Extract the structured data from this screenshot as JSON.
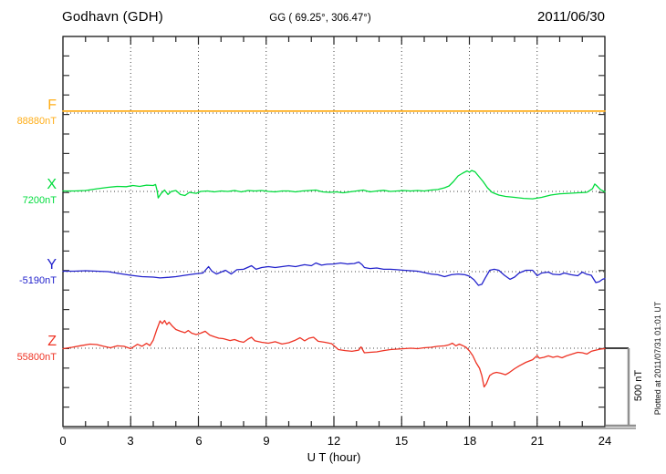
{
  "header": {
    "station": "Godhavn (GDH)",
    "coordinates": "GG ( 69.25°, 306.47°)",
    "date": "2011/06/30"
  },
  "components": [
    {
      "label": "F",
      "baseline_label": "88880nT",
      "color": "#FFAE19"
    },
    {
      "label": "X",
      "baseline_label": "7200nT",
      "color": "#00DC3C"
    },
    {
      "label": "Y",
      "baseline_label": "-5190nT",
      "color": "#2222CC"
    },
    {
      "label": "Z",
      "baseline_label": "55800nT",
      "color": "#EE3324"
    }
  ],
  "x_axis": {
    "label": "U T (hour)",
    "tick_labels": [
      "0",
      "3",
      "6",
      "9",
      "12",
      "15",
      "18",
      "21",
      "24"
    ],
    "range": [
      0,
      24
    ]
  },
  "scale_bar": {
    "label": "500 nT",
    "value_nT": 500
  },
  "footer_note": "Plotted at 2011/07/31 01:01 UT",
  "chart_data": {
    "type": "line",
    "title": "Godhavn (GDH) magnetogram, geographic coords 69.25°, 306.47°, 2011/06/30",
    "xlabel": "U T (hour)",
    "x_range": [
      0,
      24
    ],
    "grid": "dotted vertical every 3 h, dotted horizontal at each component baseline",
    "scale_note": "points are [UT hour, offset in nT from component baseline]; scale bar = 500 nT",
    "series": [
      {
        "name": "F",
        "baseline_nT": 88880,
        "color": "#FFAE19",
        "points": [
          [
            0,
            12
          ],
          [
            24,
            12
          ]
        ]
      },
      {
        "name": "X",
        "baseline_nT": 7200,
        "color": "#00DC3C",
        "points": [
          [
            0,
            3
          ],
          [
            0.5,
            3
          ],
          [
            1,
            6
          ],
          [
            1.5,
            17
          ],
          [
            2,
            26
          ],
          [
            2.4,
            32
          ],
          [
            2.8,
            30
          ],
          [
            3.1,
            38
          ],
          [
            3.4,
            32
          ],
          [
            3.7,
            40
          ],
          [
            4,
            38
          ],
          [
            4.1,
            44
          ],
          [
            4.17,
            5
          ],
          [
            4.22,
            -41
          ],
          [
            4.35,
            -12
          ],
          [
            4.5,
            9
          ],
          [
            4.65,
            -20
          ],
          [
            4.8,
            0
          ],
          [
            5,
            6
          ],
          [
            5.2,
            -20
          ],
          [
            5.4,
            -26
          ],
          [
            5.6,
            -6
          ],
          [
            5.9,
            -12
          ],
          [
            6.1,
            0
          ],
          [
            6.4,
            3
          ],
          [
            6.7,
            -3
          ],
          [
            7,
            3
          ],
          [
            7.3,
            0
          ],
          [
            7.6,
            6
          ],
          [
            7.9,
            -3
          ],
          [
            8.2,
            6
          ],
          [
            8.5,
            3
          ],
          [
            8.8,
            6
          ],
          [
            9.1,
            0
          ],
          [
            9.4,
            -3
          ],
          [
            9.7,
            3
          ],
          [
            10,
            3
          ],
          [
            10.3,
            -3
          ],
          [
            10.6,
            3
          ],
          [
            10.9,
            6
          ],
          [
            11.2,
            9
          ],
          [
            11.5,
            -3
          ],
          [
            11.8,
            -6
          ],
          [
            12.1,
            -3
          ],
          [
            12.4,
            -9
          ],
          [
            12.7,
            -3
          ],
          [
            13,
            3
          ],
          [
            13.3,
            9
          ],
          [
            13.6,
            -3
          ],
          [
            13.9,
            3
          ],
          [
            14.2,
            7
          ],
          [
            14.5,
            0
          ],
          [
            14.8,
            3
          ],
          [
            15.1,
            6
          ],
          [
            15.4,
            3
          ],
          [
            15.7,
            6
          ],
          [
            16,
            3
          ],
          [
            16.3,
            9
          ],
          [
            16.6,
            12
          ],
          [
            16.9,
            23
          ],
          [
            17.1,
            35
          ],
          [
            17.3,
            64
          ],
          [
            17.5,
            99
          ],
          [
            17.7,
            116
          ],
          [
            17.9,
            131
          ],
          [
            18,
            122
          ],
          [
            18.1,
            134
          ],
          [
            18.25,
            125
          ],
          [
            18.4,
            99
          ],
          [
            18.6,
            64
          ],
          [
            18.8,
            23
          ],
          [
            19,
            -6
          ],
          [
            19.3,
            -23
          ],
          [
            19.6,
            -32
          ],
          [
            20,
            -38
          ],
          [
            20.4,
            -44
          ],
          [
            20.8,
            -47
          ],
          [
            21.2,
            -38
          ],
          [
            21.6,
            -23
          ],
          [
            22,
            -15
          ],
          [
            22.4,
            -12
          ],
          [
            22.8,
            -9
          ],
          [
            23.2,
            -6
          ],
          [
            23.45,
            17
          ],
          [
            23.55,
            47
          ],
          [
            23.65,
            35
          ],
          [
            23.8,
            12
          ],
          [
            24,
            -3
          ]
        ]
      },
      {
        "name": "Y",
        "baseline_nT": -5190,
        "color": "#2222CC",
        "points": [
          [
            0,
            3
          ],
          [
            0.5,
            3
          ],
          [
            1,
            6
          ],
          [
            1.5,
            3
          ],
          [
            2,
            0
          ],
          [
            2.5,
            -12
          ],
          [
            3,
            -23
          ],
          [
            3.5,
            -32
          ],
          [
            4,
            -35
          ],
          [
            4.3,
            -40
          ],
          [
            4.7,
            -36
          ],
          [
            5,
            -32
          ],
          [
            5.4,
            -23
          ],
          [
            5.8,
            -15
          ],
          [
            6.2,
            -9
          ],
          [
            6.45,
            32
          ],
          [
            6.6,
            3
          ],
          [
            6.8,
            -15
          ],
          [
            7,
            -3
          ],
          [
            7.2,
            9
          ],
          [
            7.45,
            -15
          ],
          [
            7.7,
            12
          ],
          [
            8,
            15
          ],
          [
            8.35,
            38
          ],
          [
            8.55,
            15
          ],
          [
            8.8,
            26
          ],
          [
            9.1,
            32
          ],
          [
            9.4,
            26
          ],
          [
            9.7,
            32
          ],
          [
            10,
            38
          ],
          [
            10.3,
            32
          ],
          [
            10.7,
            44
          ],
          [
            11,
            38
          ],
          [
            11.2,
            55
          ],
          [
            11.45,
            41
          ],
          [
            11.7,
            47
          ],
          [
            12,
            49
          ],
          [
            12.3,
            55
          ],
          [
            12.6,
            49
          ],
          [
            12.9,
            52
          ],
          [
            13.1,
            61
          ],
          [
            13.25,
            44
          ],
          [
            13.35,
            26
          ],
          [
            13.6,
            20
          ],
          [
            13.9,
            23
          ],
          [
            14.2,
            15
          ],
          [
            14.5,
            15
          ],
          [
            14.8,
            12
          ],
          [
            15.1,
            9
          ],
          [
            15.4,
            6
          ],
          [
            15.7,
            3
          ],
          [
            16,
            -6
          ],
          [
            16.3,
            -15
          ],
          [
            16.6,
            -20
          ],
          [
            16.9,
            -32
          ],
          [
            17.2,
            -20
          ],
          [
            17.5,
            -15
          ],
          [
            17.8,
            -20
          ],
          [
            18,
            -29
          ],
          [
            18.2,
            -52
          ],
          [
            18.4,
            -87
          ],
          [
            18.55,
            -81
          ],
          [
            18.7,
            -41
          ],
          [
            18.9,
            9
          ],
          [
            19.1,
            15
          ],
          [
            19.3,
            9
          ],
          [
            19.55,
            -23
          ],
          [
            19.8,
            -49
          ],
          [
            20,
            -35
          ],
          [
            20.2,
            -9
          ],
          [
            20.5,
            9
          ],
          [
            20.8,
            9
          ],
          [
            21,
            -26
          ],
          [
            21.2,
            -9
          ],
          [
            21.5,
            -3
          ],
          [
            21.7,
            -17
          ],
          [
            22,
            -20
          ],
          [
            22.2,
            -9
          ],
          [
            22.5,
            -20
          ],
          [
            22.8,
            -26
          ],
          [
            23,
            -3
          ],
          [
            23.2,
            -17
          ],
          [
            23.4,
            -23
          ],
          [
            23.6,
            -70
          ],
          [
            23.75,
            -64
          ],
          [
            23.9,
            -49
          ],
          [
            24,
            -44
          ]
        ]
      },
      {
        "name": "Z",
        "baseline_nT": 55800,
        "color": "#EE3324",
        "points": [
          [
            0,
            -3
          ],
          [
            0.4,
            6
          ],
          [
            0.8,
            16
          ],
          [
            1.2,
            26
          ],
          [
            1.5,
            23
          ],
          [
            1.8,
            12
          ],
          [
            2.1,
            3
          ],
          [
            2.4,
            15
          ],
          [
            2.7,
            12
          ],
          [
            3,
            -3
          ],
          [
            3.3,
            25
          ],
          [
            3.5,
            12
          ],
          [
            3.7,
            31
          ],
          [
            3.85,
            17
          ],
          [
            4,
            52
          ],
          [
            4.15,
            116
          ],
          [
            4.3,
            174
          ],
          [
            4.4,
            157
          ],
          [
            4.5,
            177
          ],
          [
            4.6,
            151
          ],
          [
            4.7,
            166
          ],
          [
            4.85,
            140
          ],
          [
            5,
            119
          ],
          [
            5.2,
            108
          ],
          [
            5.4,
            99
          ],
          [
            5.55,
            113
          ],
          [
            5.7,
            96
          ],
          [
            5.9,
            87
          ],
          [
            6.1,
            96
          ],
          [
            6.3,
            108
          ],
          [
            6.5,
            84
          ],
          [
            6.7,
            73
          ],
          [
            6.9,
            64
          ],
          [
            7.1,
            61
          ],
          [
            7.4,
            49
          ],
          [
            7.6,
            55
          ],
          [
            7.8,
            44
          ],
          [
            8,
            38
          ],
          [
            8.2,
            58
          ],
          [
            8.35,
            70
          ],
          [
            8.5,
            47
          ],
          [
            8.8,
            38
          ],
          [
            9.1,
            32
          ],
          [
            9.4,
            41
          ],
          [
            9.7,
            27
          ],
          [
            10,
            35
          ],
          [
            10.3,
            52
          ],
          [
            10.5,
            67
          ],
          [
            10.7,
            47
          ],
          [
            10.9,
            64
          ],
          [
            11.1,
            70
          ],
          [
            11.3,
            44
          ],
          [
            11.6,
            38
          ],
          [
            11.9,
            29
          ],
          [
            12.2,
            -9
          ],
          [
            12.5,
            -15
          ],
          [
            12.8,
            -20
          ],
          [
            13.1,
            -12
          ],
          [
            13.2,
            9
          ],
          [
            13.35,
            -29
          ],
          [
            13.6,
            -26
          ],
          [
            13.9,
            -23
          ],
          [
            14.2,
            -15
          ],
          [
            14.5,
            -9
          ],
          [
            14.8,
            -6
          ],
          [
            15.1,
            -3
          ],
          [
            15.4,
            0
          ],
          [
            15.7,
            -3
          ],
          [
            16,
            3
          ],
          [
            16.3,
            6
          ],
          [
            16.6,
            12
          ],
          [
            16.9,
            15
          ],
          [
            17.1,
            22
          ],
          [
            17.25,
            32
          ],
          [
            17.4,
            15
          ],
          [
            17.55,
            26
          ],
          [
            17.7,
            17
          ],
          [
            17.85,
            6
          ],
          [
            18,
            -17
          ],
          [
            18.15,
            -47
          ],
          [
            18.3,
            -93
          ],
          [
            18.45,
            -128
          ],
          [
            18.55,
            -174
          ],
          [
            18.65,
            -247
          ],
          [
            18.75,
            -227
          ],
          [
            18.9,
            -174
          ],
          [
            19.05,
            -160
          ],
          [
            19.2,
            -154
          ],
          [
            19.4,
            -160
          ],
          [
            19.6,
            -169
          ],
          [
            19.75,
            -157
          ],
          [
            20,
            -131
          ],
          [
            20.2,
            -113
          ],
          [
            20.5,
            -90
          ],
          [
            20.8,
            -73
          ],
          [
            21,
            -47
          ],
          [
            21.1,
            -64
          ],
          [
            21.3,
            -58
          ],
          [
            21.5,
            -49
          ],
          [
            21.7,
            -58
          ],
          [
            21.9,
            -52
          ],
          [
            22.1,
            -61
          ],
          [
            22.3,
            -49
          ],
          [
            22.6,
            -35
          ],
          [
            22.8,
            -26
          ],
          [
            23,
            -29
          ],
          [
            23.2,
            -37
          ],
          [
            23.4,
            -20
          ],
          [
            23.6,
            -12
          ],
          [
            23.8,
            -6
          ],
          [
            24,
            -3
          ]
        ]
      }
    ]
  }
}
